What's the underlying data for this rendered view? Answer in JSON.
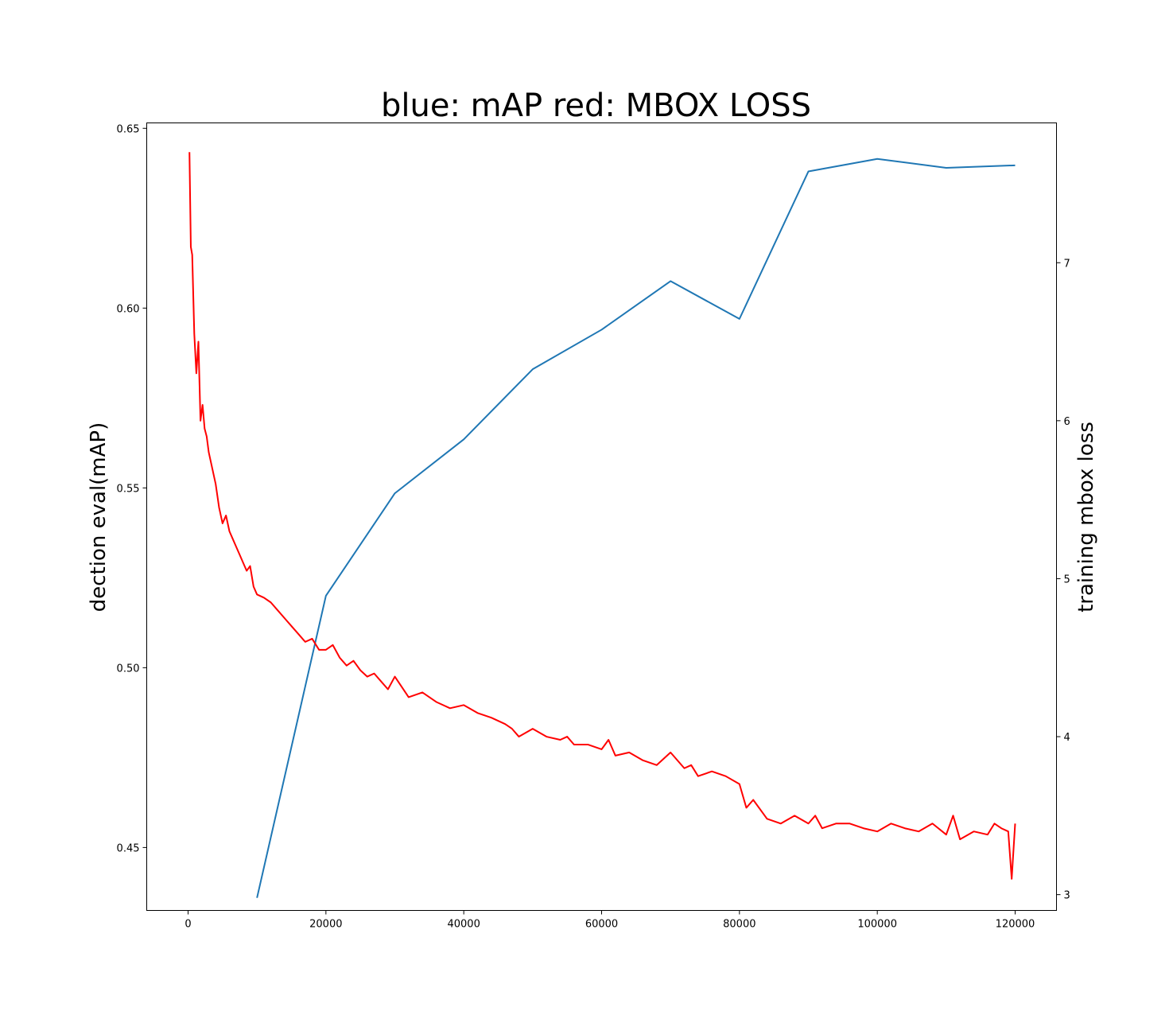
{
  "chart_data": {
    "type": "line",
    "title": "blue: mAP red: MBOX LOSS",
    "xlabel": "",
    "ylabel_left": "dection eval(mAP)",
    "ylabel_right": "training mbox loss",
    "xlim": [
      -6000,
      126000
    ],
    "ylim_left": [
      0.4325,
      0.6515
    ],
    "ylim_right": [
      2.9,
      7.885
    ],
    "x_ticks": [
      0,
      20000,
      40000,
      60000,
      80000,
      100000,
      120000
    ],
    "x_tick_labels": [
      "0",
      "20000",
      "40000",
      "60000",
      "80000",
      "100000",
      "120000"
    ],
    "y_left_ticks": [
      0.45,
      0.5,
      0.55,
      0.6,
      0.65
    ],
    "y_left_tick_labels": [
      "0.45",
      "0.50",
      "0.55",
      "0.60",
      "0.65"
    ],
    "y_right_ticks": [
      3,
      4,
      5,
      6,
      7
    ],
    "y_right_tick_labels": [
      "3",
      "4",
      "5",
      "6",
      "7"
    ],
    "grid": false,
    "series": [
      {
        "axis": "left",
        "color": "#1f77b4",
        "x": [
          10000,
          20000,
          30000,
          40000,
          50000,
          60000,
          70000,
          80000,
          90000,
          100000,
          110000,
          120000
        ],
        "values": [
          0.436,
          0.52,
          0.5485,
          0.5635,
          0.583,
          0.594,
          0.6075,
          0.597,
          0.638,
          0.6415,
          0.639,
          0.6397
        ]
      },
      {
        "axis": "right",
        "color": "#ff0000",
        "x": [
          200,
          400,
          600,
          900,
          1200,
          1500,
          1800,
          2100,
          2400,
          2700,
          3000,
          3500,
          4000,
          4500,
          5000,
          5500,
          6000,
          6500,
          7000,
          7500,
          8000,
          8500,
          9000,
          9500,
          10000,
          11000,
          12000,
          13000,
          14000,
          15000,
          16000,
          17000,
          18000,
          19000,
          20000,
          21000,
          22000,
          23000,
          24000,
          25000,
          26000,
          27000,
          28000,
          29000,
          30000,
          32000,
          34000,
          36000,
          38000,
          40000,
          42000,
          44000,
          46000,
          47000,
          48000,
          50000,
          52000,
          54000,
          55000,
          56000,
          58000,
          60000,
          61000,
          62000,
          64000,
          66000,
          68000,
          70000,
          72000,
          73000,
          74000,
          76000,
          78000,
          80000,
          81000,
          82000,
          84000,
          86000,
          88000,
          90000,
          91000,
          92000,
          94000,
          96000,
          98000,
          100000,
          102000,
          104000,
          106000,
          108000,
          110000,
          111000,
          112000,
          114000,
          116000,
          117000,
          118000,
          119000,
          119500,
          120000
        ],
        "values": [
          7.7,
          7.1,
          7.05,
          6.55,
          6.3,
          6.5,
          6.0,
          6.1,
          5.95,
          5.9,
          5.8,
          5.7,
          5.6,
          5.45,
          5.35,
          5.4,
          5.3,
          5.25,
          5.2,
          5.15,
          5.1,
          5.05,
          5.08,
          4.95,
          4.9,
          4.88,
          4.85,
          4.8,
          4.75,
          4.7,
          4.65,
          4.6,
          4.62,
          4.55,
          4.55,
          4.58,
          4.5,
          4.45,
          4.48,
          4.42,
          4.38,
          4.4,
          4.35,
          4.3,
          4.38,
          4.25,
          4.28,
          4.22,
          4.18,
          4.2,
          4.15,
          4.12,
          4.08,
          4.05,
          4.0,
          4.05,
          4.0,
          3.98,
          4.0,
          3.95,
          3.95,
          3.92,
          3.98,
          3.88,
          3.9,
          3.85,
          3.82,
          3.9,
          3.8,
          3.82,
          3.75,
          3.78,
          3.75,
          3.7,
          3.55,
          3.6,
          3.48,
          3.45,
          3.5,
          3.45,
          3.5,
          3.42,
          3.45,
          3.45,
          3.42,
          3.4,
          3.45,
          3.42,
          3.4,
          3.45,
          3.38,
          3.5,
          3.35,
          3.4,
          3.38,
          3.45,
          3.42,
          3.4,
          3.1,
          3.45
        ]
      }
    ]
  }
}
